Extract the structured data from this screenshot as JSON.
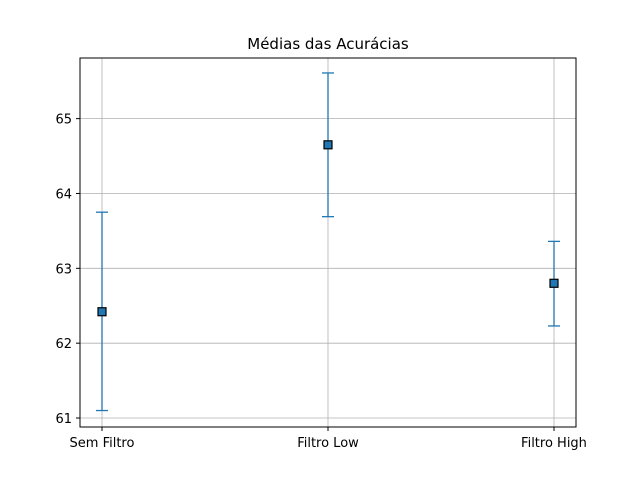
{
  "chart_data": {
    "type": "scatter",
    "title": "Médias das Acurácias",
    "xlabel": "",
    "ylabel": "",
    "categories": [
      "Sem Filtro",
      "Filtro Low",
      "Filtro High"
    ],
    "values": [
      62.42,
      64.65,
      62.8
    ],
    "error_low": [
      61.1,
      63.69,
      62.23
    ],
    "error_high": [
      63.75,
      65.61,
      63.36
    ],
    "ylim": [
      60.88,
      65.81
    ],
    "yticks": [
      61,
      62,
      63,
      64,
      65
    ],
    "grid": true,
    "legend": "none",
    "marker": "square",
    "colors": {
      "errorbar": "#1f77b4",
      "marker_fill": "#1f77b4",
      "marker_edge": "#000000",
      "grid": "#b0b0b0",
      "axes": "#000000"
    }
  }
}
